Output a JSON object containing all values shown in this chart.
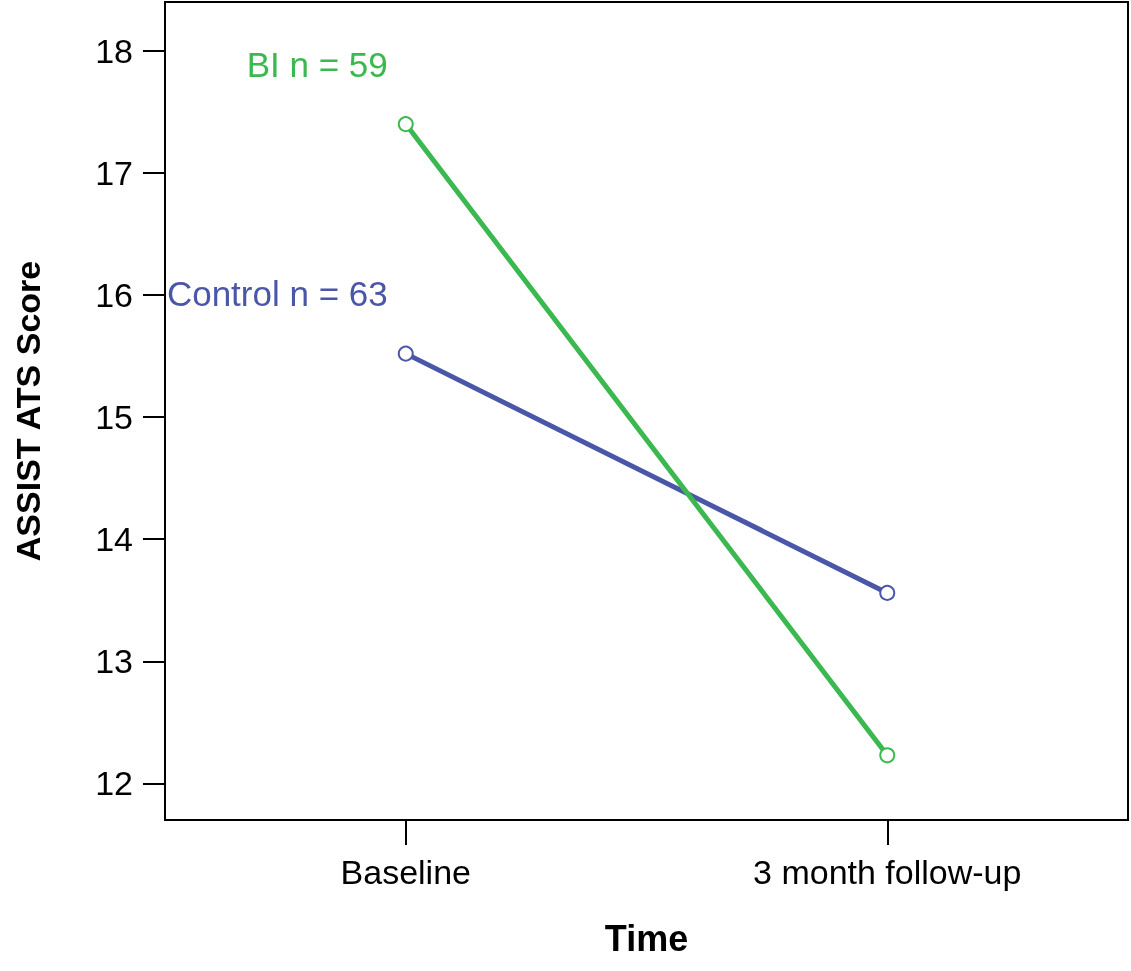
{
  "chart_data": {
    "type": "line",
    "xlabel": "Time",
    "ylabel": "ASSIST ATS Score",
    "categories": [
      "Baseline",
      "3 month follow-up"
    ],
    "series": [
      {
        "name": "Control n = 63",
        "color": "#4a56a8",
        "values": [
          15.52,
          13.56
        ]
      },
      {
        "name": "BI n = 59",
        "color": "#3cb850",
        "values": [
          17.4,
          12.23
        ]
      }
    ],
    "ylim": [
      11.7,
      18.4
    ],
    "yticks": [
      12,
      13,
      14,
      15,
      16,
      17,
      18
    ],
    "grid": false,
    "legend": false,
    "marker": "circle",
    "line_style": "solid"
  }
}
